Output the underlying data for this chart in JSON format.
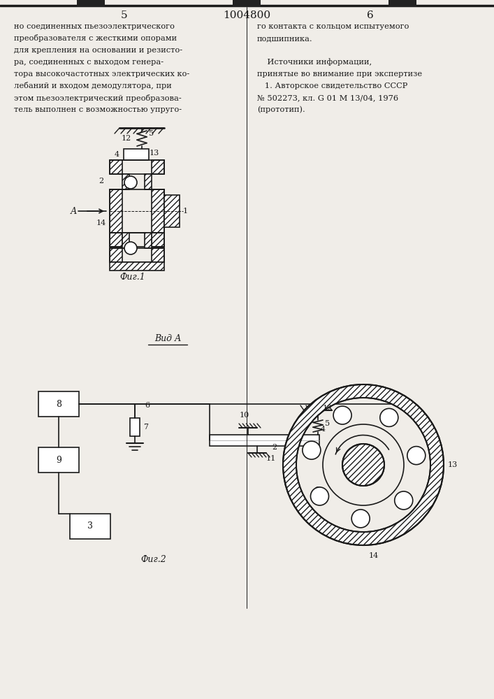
{
  "bg_color": "#f0ede8",
  "line_color": "#1a1a1a",
  "text_color": "#1a1a1a",
  "left_col_text": [
    "но соединенных пьезоэлектрического",
    "преобразователя с жесткими опорами",
    "для крепления на основании и резисто-",
    "ра, соединенных с выходом генера-",
    "тора высокочастотных электрических ко-",
    "лебаний и входом демодулятора, при",
    "этом пьезоэлектрический преобразова-",
    "тель выполнен с возможностью упруго-"
  ],
  "right_col_text": [
    "го контакта с кольцом испытуемого",
    "подшипника.",
    "",
    "    Источники информации,",
    "принятые во внимание при экспертизе",
    "   1. Авторское свидетельство СССР",
    "№ 502273, кл. G 01 M 13/04, 1976",
    "(прототип)."
  ],
  "fig1_caption": "Фиг.1",
  "fig2_caption": "Фиг.2",
  "vid_a_label": "Вид А"
}
